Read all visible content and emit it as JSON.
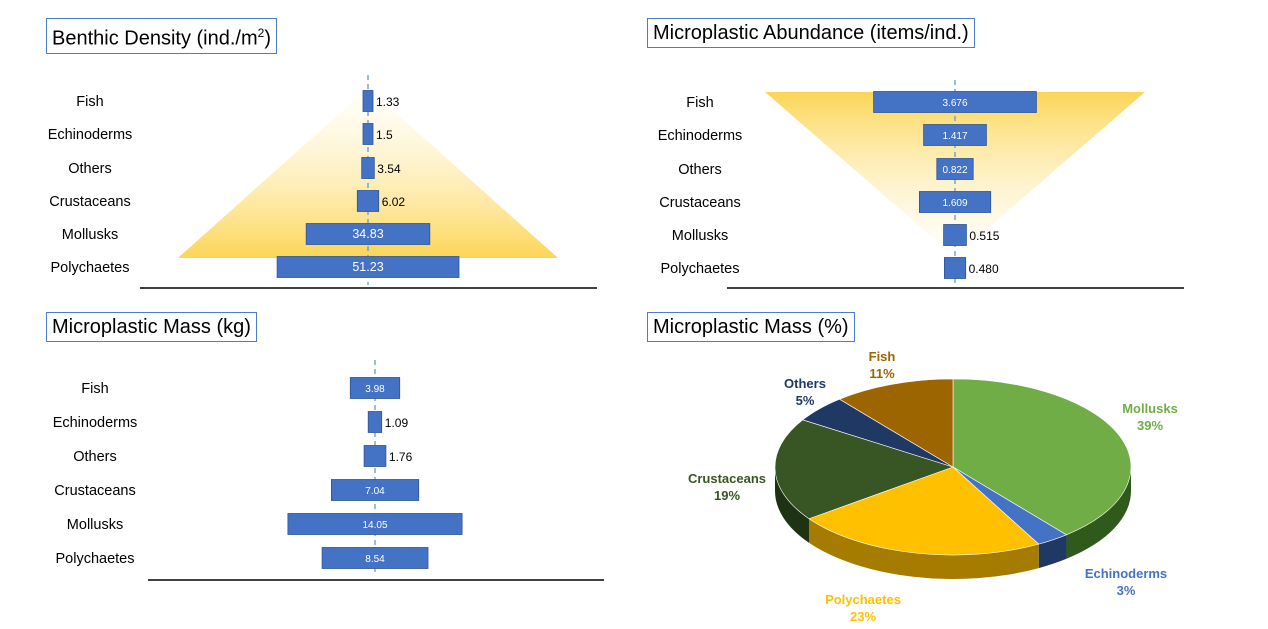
{
  "chart_data": [
    {
      "type": "bar",
      "title_main": "Benthic Density (ind./m",
      "title_sup": "2",
      "title_end": ")",
      "categories": [
        "Fish",
        "Echinoderms",
        "Others",
        "Crustaceans",
        "Mollusks",
        "Polychaetes"
      ],
      "values": [
        1.33,
        1.5,
        3.54,
        6.02,
        34.83,
        51.23
      ],
      "value_labels": [
        "1.33",
        "1.5",
        "3.54",
        "6.02",
        "34.83",
        "51.23"
      ],
      "layout": "centered-diverging",
      "highlight_color": "#fcd34d"
    },
    {
      "type": "bar",
      "title": "Microplastic Abundance (items/ind.)",
      "categories": [
        "Fish",
        "Echinoderms",
        "Others",
        "Crustaceans",
        "Mollusks",
        "Polychaetes"
      ],
      "values": [
        3.676,
        1.417,
        0.822,
        1.609,
        0.515,
        0.48
      ],
      "value_labels": [
        "3.676",
        "1.417",
        "0.822",
        "1.609",
        "0.515",
        "0.480"
      ],
      "layout": "centered-diverging",
      "highlight_color": "#fcd34d"
    },
    {
      "type": "bar",
      "title": "Microplastic Mass (kg)",
      "categories": [
        "Fish",
        "Echinoderms",
        "Others",
        "Crustaceans",
        "Mollusks",
        "Polychaetes"
      ],
      "values": [
        3.98,
        1.09,
        1.76,
        7.04,
        14.05,
        8.54
      ],
      "value_labels": [
        "3.98",
        "1.09",
        "1.76",
        "7.04",
        "14.05",
        "8.54"
      ],
      "layout": "centered-diverging"
    },
    {
      "type": "pie",
      "title": "Microplastic Mass (%)",
      "slices": [
        {
          "name": "Mollusks",
          "value": 39,
          "label": "39%",
          "color": "#70ad47",
          "dark": "#2f5a1b"
        },
        {
          "name": "Echinoderms",
          "value": 3,
          "label": "3%",
          "color": "#4472c4",
          "dark": "#1f3864"
        },
        {
          "name": "Polychaetes",
          "value": 23,
          "label": "23%",
          "color": "#ffc000",
          "dark": "#a57c00"
        },
        {
          "name": "Crustaceans",
          "value": 19,
          "label": "19%",
          "color": "#375623",
          "dark": "#1e3313"
        },
        {
          "name": "Others",
          "value": 5,
          "label": "5%",
          "color": "#203864",
          "dark": "#111f38"
        },
        {
          "name": "Fish",
          "value": 11,
          "label": "11%",
          "color": "#9c6500",
          "dark": "#5c3b00"
        }
      ],
      "label_colors": {
        "Mollusks": "#70ad47",
        "Echinoderms": "#4472c4",
        "Polychaetes": "#ffc000",
        "Crustaceans": "#375623",
        "Others": "#203864",
        "Fish": "#9c6500"
      }
    }
  ],
  "colors": {
    "bar": "#4472c4",
    "bar_border": "#2f5597",
    "title_border": "#4a7ec9"
  }
}
